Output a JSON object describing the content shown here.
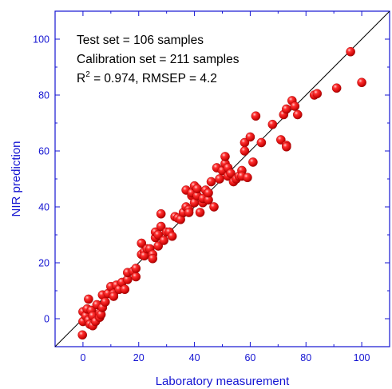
{
  "chart_data": {
    "type": "scatter",
    "xlabel": "Laboratory measurement",
    "ylabel": "NIR prediction",
    "xlim": [
      -10,
      110
    ],
    "ylim": [
      -10,
      110
    ],
    "xticks": [
      "0",
      "20",
      "40",
      "60",
      "80",
      "100"
    ],
    "yticks": [
      "0",
      "20",
      "40",
      "60",
      "80",
      "100"
    ],
    "grid": false,
    "reference_line": "y = x",
    "annotations": {
      "line1": "Test set = 106 samples",
      "line2": "Calibration set = 211 samples",
      "line3_prefix": "R",
      "line3_sup": "2",
      "line3_suffix": " = 0.974, RMSEP = 4.2"
    },
    "colors": {
      "axis": "#1414d2",
      "points": "#e01010",
      "reference": "#000000"
    },
    "points": [
      {
        "x": -0.2,
        "y": -5.8
      },
      {
        "x": 0,
        "y": -1
      },
      {
        "x": 0,
        "y": 2.5
      },
      {
        "x": 1,
        "y": 1
      },
      {
        "x": 1.5,
        "y": 3.5
      },
      {
        "x": 2,
        "y": -0.5
      },
      {
        "x": 2,
        "y": 7
      },
      {
        "x": 2.5,
        "y": -2
      },
      {
        "x": 3,
        "y": 3
      },
      {
        "x": 3.5,
        "y": 1
      },
      {
        "x": 3.5,
        "y": -2.5
      },
      {
        "x": 4.5,
        "y": -1
      },
      {
        "x": 5,
        "y": 5
      },
      {
        "x": 6,
        "y": 2
      },
      {
        "x": 6,
        "y": 0.5
      },
      {
        "x": 6.5,
        "y": 1.5
      },
      {
        "x": 7,
        "y": 4
      },
      {
        "x": 7,
        "y": 8.5
      },
      {
        "x": 8,
        "y": 6
      },
      {
        "x": 9,
        "y": 9
      },
      {
        "x": 10,
        "y": 11.5
      },
      {
        "x": 11,
        "y": 9
      },
      {
        "x": 11,
        "y": 8
      },
      {
        "x": 12,
        "y": 12
      },
      {
        "x": 13,
        "y": 10.5
      },
      {
        "x": 14,
        "y": 13
      },
      {
        "x": 15,
        "y": 10.5
      },
      {
        "x": 16,
        "y": 14
      },
      {
        "x": 16,
        "y": 16.5
      },
      {
        "x": 18,
        "y": 17
      },
      {
        "x": 19,
        "y": 15
      },
      {
        "x": 19,
        "y": 18
      },
      {
        "x": 21,
        "y": 23
      },
      {
        "x": 21,
        "y": 27
      },
      {
        "x": 22,
        "y": 24
      },
      {
        "x": 22,
        "y": 22.5
      },
      {
        "x": 23,
        "y": 25
      },
      {
        "x": 24,
        "y": 25
      },
      {
        "x": 25,
        "y": 23
      },
      {
        "x": 25,
        "y": 21.5
      },
      {
        "x": 26,
        "y": 29
      },
      {
        "x": 26,
        "y": 31
      },
      {
        "x": 27,
        "y": 26
      },
      {
        "x": 27,
        "y": 30
      },
      {
        "x": 28,
        "y": 33
      },
      {
        "x": 28,
        "y": 37.5
      },
      {
        "x": 29,
        "y": 28
      },
      {
        "x": 30,
        "y": 31
      },
      {
        "x": 31,
        "y": 31
      },
      {
        "x": 32,
        "y": 29.5
      },
      {
        "x": 33,
        "y": 36.5
      },
      {
        "x": 34,
        "y": 36
      },
      {
        "x": 35,
        "y": 35.5
      },
      {
        "x": 36,
        "y": 38
      },
      {
        "x": 37,
        "y": 40
      },
      {
        "x": 37,
        "y": 46
      },
      {
        "x": 38,
        "y": 39
      },
      {
        "x": 38,
        "y": 38
      },
      {
        "x": 39,
        "y": 44
      },
      {
        "x": 39,
        "y": 45
      },
      {
        "x": 40,
        "y": 41.5
      },
      {
        "x": 40,
        "y": 47.5
      },
      {
        "x": 41,
        "y": 44
      },
      {
        "x": 41,
        "y": 46.5
      },
      {
        "x": 42,
        "y": 38
      },
      {
        "x": 43,
        "y": 41.5
      },
      {
        "x": 43,
        "y": 43
      },
      {
        "x": 44,
        "y": 46
      },
      {
        "x": 45,
        "y": 42.5
      },
      {
        "x": 45,
        "y": 45
      },
      {
        "x": 46,
        "y": 49
      },
      {
        "x": 47,
        "y": 40
      },
      {
        "x": 48,
        "y": 54
      },
      {
        "x": 49,
        "y": 50
      },
      {
        "x": 50,
        "y": 53
      },
      {
        "x": 51,
        "y": 55.5
      },
      {
        "x": 51,
        "y": 58
      },
      {
        "x": 52,
        "y": 51
      },
      {
        "x": 52,
        "y": 54
      },
      {
        "x": 53,
        "y": 52
      },
      {
        "x": 54,
        "y": 49
      },
      {
        "x": 55,
        "y": 50
      },
      {
        "x": 56,
        "y": 51
      },
      {
        "x": 57,
        "y": 53
      },
      {
        "x": 57,
        "y": 51
      },
      {
        "x": 58,
        "y": 63
      },
      {
        "x": 58,
        "y": 60
      },
      {
        "x": 59,
        "y": 50.5
      },
      {
        "x": 60,
        "y": 65
      },
      {
        "x": 61,
        "y": 56
      },
      {
        "x": 62,
        "y": 72.5
      },
      {
        "x": 64,
        "y": 63
      },
      {
        "x": 68,
        "y": 69.5
      },
      {
        "x": 71,
        "y": 64
      },
      {
        "x": 72,
        "y": 73
      },
      {
        "x": 73,
        "y": 75
      },
      {
        "x": 73,
        "y": 62
      },
      {
        "x": 73,
        "y": 61.5
      },
      {
        "x": 75,
        "y": 78
      },
      {
        "x": 76,
        "y": 76
      },
      {
        "x": 77,
        "y": 73
      },
      {
        "x": 83,
        "y": 80
      },
      {
        "x": 84,
        "y": 80.5
      },
      {
        "x": 91,
        "y": 82.5
      },
      {
        "x": 96,
        "y": 95.5
      },
      {
        "x": 100,
        "y": 84.5
      }
    ]
  }
}
